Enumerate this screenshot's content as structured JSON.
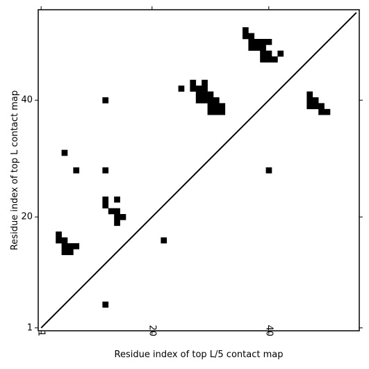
{
  "chart_data": {
    "type": "heatmap",
    "title": "",
    "xlabel": "Residue index of top L/5 contact map",
    "ylabel": "Residue index of top L contact map",
    "xlim": [
      0.5,
      55.5
    ],
    "ylim": [
      0.5,
      55.5
    ],
    "xticks": [
      1,
      20,
      40
    ],
    "yticks": [
      1,
      20,
      40
    ],
    "xticklabels": [
      "1",
      "20",
      "40"
    ],
    "yticklabels": [
      "1",
      "20",
      "40"
    ],
    "x_tick_label_rotation": -90,
    "diagonal": {
      "from": [
        1,
        1
      ],
      "to": [
        55,
        55
      ],
      "color": "#000000"
    },
    "cell_color": "#000000",
    "background": "#ffffff",
    "grid": false,
    "cells": [
      [
        12,
        40
      ],
      [
        12,
        28
      ],
      [
        12,
        23
      ],
      [
        12,
        22
      ],
      [
        14,
        23
      ],
      [
        13,
        21
      ],
      [
        14,
        21
      ],
      [
        14,
        20
      ],
      [
        14,
        19
      ],
      [
        15,
        20
      ],
      [
        5,
        31
      ],
      [
        7,
        28
      ],
      [
        4,
        17
      ],
      [
        4,
        16
      ],
      [
        5,
        16
      ],
      [
        5,
        15
      ],
      [
        5,
        14
      ],
      [
        6,
        15
      ],
      [
        6,
        14
      ],
      [
        7,
        15
      ],
      [
        12,
        5
      ],
      [
        22,
        16
      ],
      [
        25,
        42
      ],
      [
        27,
        43
      ],
      [
        27,
        42
      ],
      [
        28,
        42
      ],
      [
        28,
        41
      ],
      [
        28,
        40
      ],
      [
        29,
        43
      ],
      [
        29,
        42
      ],
      [
        29,
        41
      ],
      [
        29,
        40
      ],
      [
        30,
        41
      ],
      [
        30,
        40
      ],
      [
        30,
        39
      ],
      [
        30,
        38
      ],
      [
        31,
        40
      ],
      [
        31,
        39
      ],
      [
        31,
        38
      ],
      [
        32,
        39
      ],
      [
        32,
        38
      ],
      [
        36,
        52
      ],
      [
        36,
        51
      ],
      [
        37,
        51
      ],
      [
        37,
        50
      ],
      [
        37,
        49
      ],
      [
        38,
        50
      ],
      [
        38,
        49
      ],
      [
        39,
        50
      ],
      [
        39,
        49
      ],
      [
        39,
        48
      ],
      [
        39,
        47
      ],
      [
        40,
        50
      ],
      [
        40,
        48
      ],
      [
        40,
        47
      ],
      [
        41,
        47
      ],
      [
        42,
        48
      ],
      [
        47,
        41
      ],
      [
        47,
        40
      ],
      [
        47,
        39
      ],
      [
        48,
        40
      ],
      [
        48,
        39
      ],
      [
        49,
        39
      ],
      [
        49,
        38
      ],
      [
        50,
        38
      ],
      [
        40,
        28
      ]
    ]
  }
}
